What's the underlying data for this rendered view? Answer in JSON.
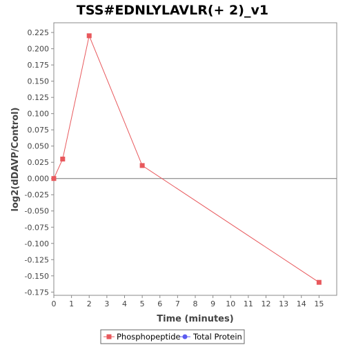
{
  "chart_data": {
    "type": "line",
    "title": "TSS#EDNLYLAVLR(+ 2)_v1",
    "xlabel": "Time (minutes)",
    "ylabel": "log2(dDAVP/Control)",
    "xlim": [
      0,
      16
    ],
    "ylim": [
      -0.18,
      0.24
    ],
    "x_ticks": [
      0,
      1,
      2,
      3,
      4,
      5,
      6,
      7,
      8,
      9,
      10,
      11,
      12,
      13,
      14,
      15
    ],
    "y_ticks": [
      -0.175,
      -0.15,
      -0.125,
      -0.1,
      -0.075,
      -0.05,
      -0.025,
      0.0,
      0.025,
      0.05,
      0.075,
      0.1,
      0.125,
      0.15,
      0.175,
      0.2,
      0.225
    ],
    "y_tick_labels": [
      "-0.175",
      "-0.150",
      "-0.125",
      "-0.100",
      "-0.075",
      "-0.050",
      "-0.025",
      "0.000",
      "0.025",
      "0.050",
      "0.075",
      "0.100",
      "0.125",
      "0.150",
      "0.175",
      "0.200",
      "0.225"
    ],
    "grid": false,
    "zero_line": true,
    "legend_position": "bottom",
    "series": [
      {
        "name": "Phosphopeptide",
        "color": "#e8585c",
        "marker": "square",
        "points": [
          {
            "x": 0,
            "y": 0.0
          },
          {
            "x": 0.5,
            "y": 0.03
          },
          {
            "x": 2,
            "y": 0.22
          },
          {
            "x": 5,
            "y": 0.02
          },
          {
            "x": 15,
            "y": -0.16
          }
        ]
      },
      {
        "name": "Total Protein",
        "color": "#5b5bf0",
        "marker": "circle",
        "points": []
      }
    ]
  }
}
